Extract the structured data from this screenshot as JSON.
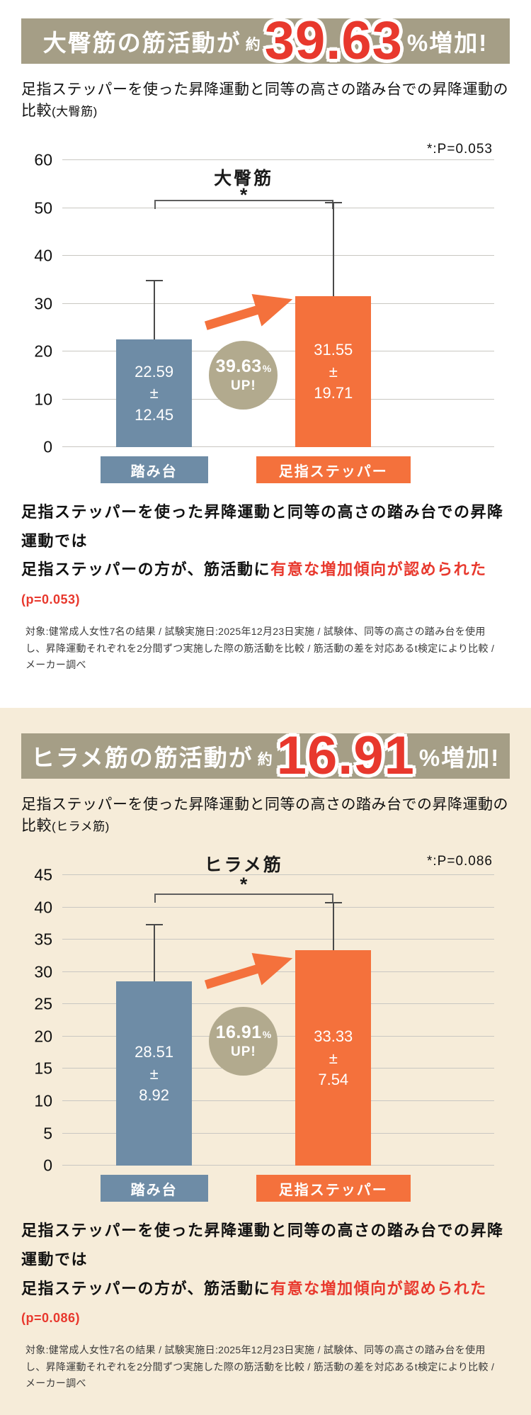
{
  "page": {
    "background_top": "#ffffff",
    "background_bottom": "#f6ecd9",
    "accent_red": "#e8382d",
    "banner_color": "#a59e86",
    "badge_color": "#b2aa8e"
  },
  "chart_data": [
    {
      "type": "bar",
      "title": "大臀筋",
      "significance_star": "*",
      "p_value_note": "*:P=0.053",
      "categories": [
        "踏み台",
        "足指ステッパー"
      ],
      "values": [
        22.59,
        31.55
      ],
      "errors": [
        12.45,
        19.71
      ],
      "plus_minus": "±",
      "ylim": [
        0,
        60
      ],
      "ytick_step": 10,
      "xlabel": "",
      "ylabel": "",
      "grid": true,
      "legend": false,
      "bar_colors": [
        "#6e8ca6",
        "#f4713c"
      ]
    },
    {
      "type": "bar",
      "title": "ヒラメ筋",
      "significance_star": "*",
      "p_value_note": "*:P=0.086",
      "categories": [
        "踏み台",
        "足指ステッパー"
      ],
      "values": [
        28.51,
        33.33
      ],
      "errors": [
        8.92,
        7.54
      ],
      "plus_minus": "±",
      "ylim": [
        0,
        45
      ],
      "ytick_step": 5,
      "xlabel": "",
      "ylabel": "",
      "grid": true,
      "legend": false,
      "bar_colors": [
        "#6e8ca6",
        "#f4713c"
      ]
    }
  ],
  "sections": [
    {
      "banner": {
        "prefix": "大臀筋の筋活動が",
        "approx": "約",
        "number": "39.63",
        "suffix": "%増加!"
      },
      "subtitle": {
        "main": "足指ステッパーを使った昇降運動と同等の高さの踏み台での昇降運動の比較",
        "paren": "(大臀筋)"
      },
      "badge": {
        "number": "39.63",
        "percent": "%",
        "label": "UP!"
      },
      "result": {
        "line1": "足指ステッパーを使った昇降運動と同等の高さの踏み台での昇降運動では",
        "line2_black": "足指ステッパーの方が、筋活動に",
        "line2_red": "有意な増加傾向が認められた",
        "line2_p": "(p=0.053)"
      },
      "footnote": "対象:健常成人女性7名の結果 / 試験実施日:2025年12月23日実施 / 試験体、同等の高さの踏み台を使用し、昇降運動それぞれを2分間ずつ実施した際の筋活動を比較 / 筋活動の差を対応あるt検定により比較 / メーカー調べ"
    },
    {
      "banner": {
        "prefix": "ヒラメ筋の筋活動が",
        "approx": "約",
        "number": "16.91",
        "suffix": "%増加!"
      },
      "subtitle": {
        "main": "足指ステッパーを使った昇降運動と同等の高さの踏み台での昇降運動の比較",
        "paren": "(ヒラメ筋)"
      },
      "badge": {
        "number": "16.91",
        "percent": "%",
        "label": "UP!"
      },
      "result": {
        "line1": "足指ステッパーを使った昇降運動と同等の高さの踏み台での昇降運動では",
        "line2_black": "足指ステッパーの方が、筋活動に",
        "line2_red": "有意な増加傾向が認められた",
        "line2_p": "(p=0.086)"
      },
      "footnote": "対象:健常成人女性7名の結果 / 試験実施日:2025年12月23日実施 / 試験体、同等の高さの踏み台を使用し、昇降運動それぞれを2分間ずつ実施した際の筋活動を比較 / 筋活動の差を対応あるt検定により比較 / メーカー調べ"
    }
  ]
}
